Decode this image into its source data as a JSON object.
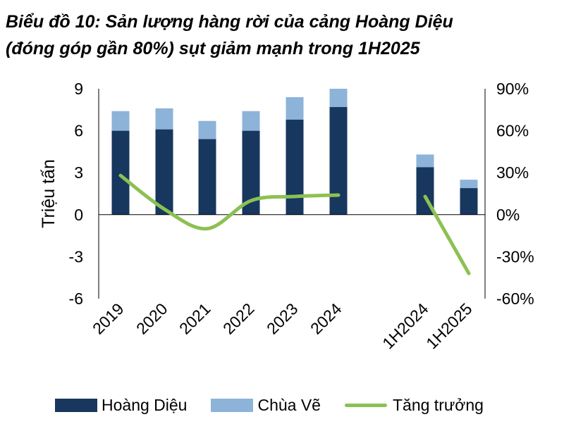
{
  "title_line1": "Biểu đồ 10: Sản lượng hàng rời của cảng Hoàng Diệu",
  "title_line2": "(đóng góp gần 80%) sụt giảm mạnh trong 1H2025",
  "colors": {
    "hoang_dieu": "#17375e",
    "chua_ve": "#8db3d9",
    "growth": "#8cc152",
    "axis": "#000000"
  },
  "chart_data": {
    "type": "bar",
    "stacked": true,
    "categories": [
      "2019",
      "2020",
      "2021",
      "2022",
      "2023",
      "2024",
      "1H2024",
      "1H2025"
    ],
    "series": [
      {
        "name": "Hoàng Diệu",
        "values": [
          6.0,
          6.1,
          5.4,
          6.0,
          6.8,
          7.7,
          3.4,
          1.9
        ]
      },
      {
        "name": "Chùa Vẽ",
        "values": [
          1.4,
          1.5,
          1.3,
          1.4,
          1.6,
          1.3,
          0.9,
          0.6
        ]
      },
      {
        "name": "Tăng trưởng",
        "type": "line",
        "axis": "right",
        "segments": [
          [
            0,
            5
          ],
          [
            6,
            7
          ]
        ],
        "values": [
          28,
          4,
          -10,
          10,
          13,
          14,
          13,
          -42
        ]
      }
    ],
    "ylabel": "Triệu tấn",
    "ylim": [
      -6,
      9
    ],
    "yticks": [
      "9",
      "6",
      "3",
      "0",
      "-3",
      "-6"
    ],
    "y2lim": [
      -60,
      90
    ],
    "y2ticks": [
      "90%",
      "60%",
      "30%",
      "0%",
      "-30%",
      "-60%"
    ],
    "legend": "bottom",
    "grid": false
  },
  "legend": {
    "hoang_dieu": "Hoàng Diệu",
    "chua_ve": "Chùa Vẽ",
    "growth": "Tăng trưởng"
  }
}
